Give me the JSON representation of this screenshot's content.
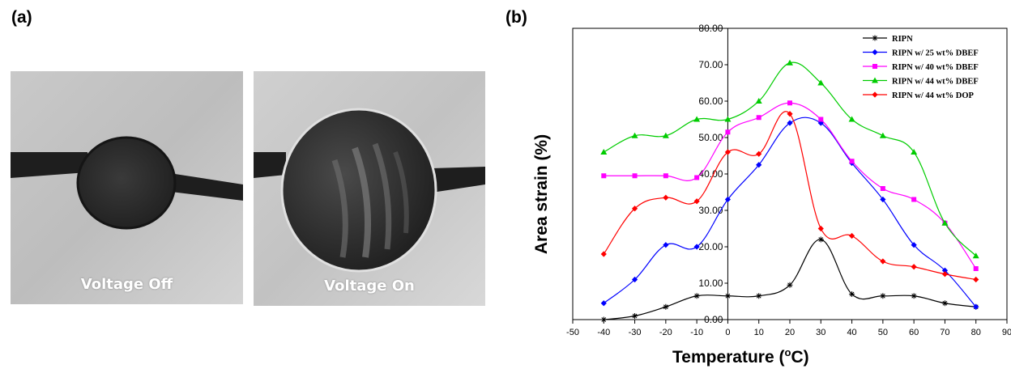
{
  "panels": {
    "a": {
      "label": "(a)",
      "photos": [
        {
          "caption": "Voltage Off"
        },
        {
          "caption": "Voltage On"
        }
      ]
    },
    "b": {
      "label": "(b)"
    }
  },
  "chart_data": {
    "type": "line",
    "xlabel_prefix": "Temperature (",
    "xlabel_unit_sup": "o",
    "xlabel_suffix": "C)",
    "ylabel": "Area strain (%)",
    "xlim": [
      -50,
      90
    ],
    "ylim": [
      0,
      80
    ],
    "x_ticks": [
      "-50",
      "-40",
      "-30",
      "-20",
      "-10",
      "0",
      "10",
      "20",
      "30",
      "40",
      "50",
      "60",
      "70",
      "80",
      "90"
    ],
    "y_ticks": [
      "0.00",
      "10.00",
      "20.00",
      "30.00",
      "40.00",
      "50.00",
      "60.00",
      "70.00",
      "80.00"
    ],
    "legend_position": "top-right",
    "x": [
      -40,
      -30,
      -20,
      -10,
      0,
      10,
      20,
      30,
      40,
      50,
      60,
      70,
      80
    ],
    "series": [
      {
        "name": "RIPN",
        "color": "#000000",
        "marker": "star",
        "values": [
          0,
          1,
          3.5,
          6.5,
          6.5,
          6.5,
          9.5,
          22,
          7,
          6.5,
          6.5,
          4.5,
          3.5
        ]
      },
      {
        "name": "RIPN w/ 25 wt% DBEF",
        "color": "#0000ff",
        "marker": "diamond",
        "values": [
          4.5,
          11,
          20.5,
          20,
          33,
          42.5,
          54,
          54,
          43,
          33,
          20.5,
          13.5,
          3.5
        ]
      },
      {
        "name": "RIPN w/ 40 wt% DBEF",
        "color": "#ff00ff",
        "marker": "square",
        "values": [
          39.5,
          39.5,
          39.5,
          39,
          51.5,
          55.5,
          59.5,
          55,
          43.5,
          36,
          33,
          26.5,
          14
        ]
      },
      {
        "name": "RIPN w/ 44 wt% DBEF",
        "color": "#00cc00",
        "marker": "triangle",
        "values": [
          46,
          50.5,
          50.5,
          55,
          55,
          60,
          70.5,
          65,
          55,
          50.5,
          46,
          26.5,
          17.5
        ]
      },
      {
        "name": "RIPN w/ 44 wt% DOP",
        "color": "#ff0000",
        "marker": "diamond",
        "values": [
          18,
          30.5,
          33.5,
          32.5,
          46,
          45.5,
          56.5,
          25,
          23,
          16,
          14.5,
          12.5,
          11
        ]
      }
    ]
  }
}
